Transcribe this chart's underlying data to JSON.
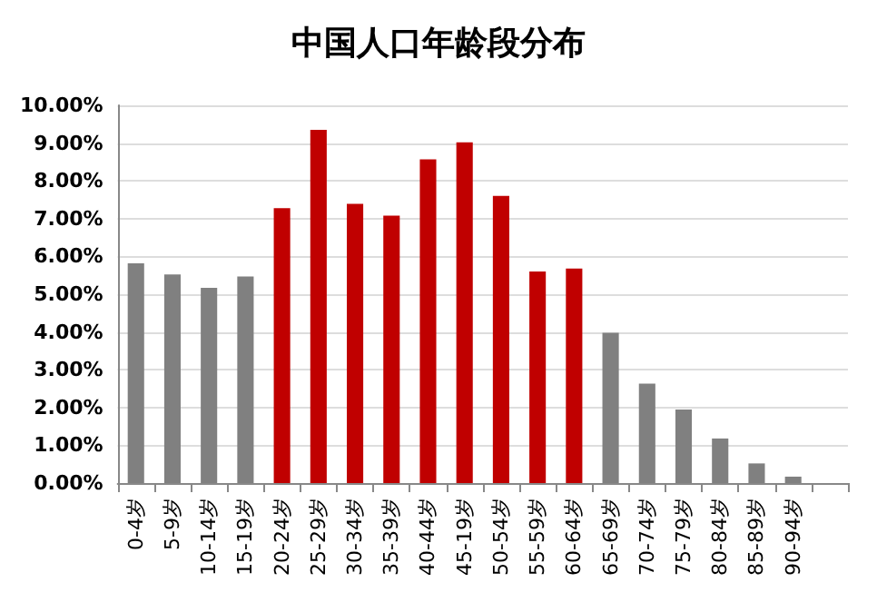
{
  "chart_data": {
    "type": "bar",
    "title": "中国人口年龄段分布",
    "categories": [
      "0-4岁",
      "5-9岁",
      "10-14岁",
      "15-19岁",
      "20-24岁",
      "25-29岁",
      "30-34岁",
      "35-39岁",
      "40-44岁",
      "45-19岁",
      "50-54岁",
      "55-59岁",
      "60-64岁",
      "65-69岁",
      "70-74岁",
      "75-79岁",
      "80-84岁",
      "85-89岁",
      "90-94岁",
      null
    ],
    "values": [
      5.82,
      5.52,
      5.17,
      5.47,
      7.28,
      9.35,
      7.39,
      7.08,
      8.57,
      9.02,
      7.6,
      5.6,
      5.68,
      3.98,
      2.63,
      1.95,
      1.18,
      0.52,
      0.17,
      null
    ],
    "colors": [
      "#808080",
      "#808080",
      "#808080",
      "#808080",
      "#c00000",
      "#c00000",
      "#c00000",
      "#c00000",
      "#c00000",
      "#c00000",
      "#c00000",
      "#c00000",
      "#c00000",
      "#808080",
      "#808080",
      "#808080",
      "#808080",
      "#808080",
      "#808080",
      "#808080"
    ],
    "ylim": [
      0,
      10
    ],
    "yticks": [
      {
        "value": 0,
        "label": "0.00%"
      },
      {
        "value": 1,
        "label": "1.00%"
      },
      {
        "value": 2,
        "label": "2.00%"
      },
      {
        "value": 3,
        "label": "3.00%"
      },
      {
        "value": 4,
        "label": "4.00%"
      },
      {
        "value": 5,
        "label": "5.00%"
      },
      {
        "value": 6,
        "label": "6.00%"
      },
      {
        "value": 7,
        "label": "7.00%"
      },
      {
        "value": 8,
        "label": "8.00%"
      },
      {
        "value": 9,
        "label": "9.00%"
      },
      {
        "value": 10,
        "label": "10.00%"
      }
    ],
    "grid": "y"
  }
}
